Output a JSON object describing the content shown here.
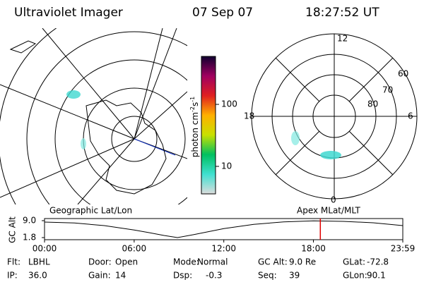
{
  "header": {
    "title": "Ultraviolet Imager",
    "date": "07 Sep 07",
    "time": "18:27:52 UT"
  },
  "colorbar": {
    "label": "photon cm",
    "exp1": "-2",
    "unit2": "s",
    "exp2": "-1",
    "log": true,
    "lim": [
      3.6,
      594
    ],
    "ticks": [
      10,
      100
    ],
    "colors": [
      "#dcdcdc",
      "#40e0d0",
      "#00c060",
      "#c8e000",
      "#ffb000",
      "#e02020",
      "#a00060",
      "#100030"
    ]
  },
  "polar": {
    "mlt_labels": [
      "12",
      "6",
      "0",
      "18"
    ],
    "lat_labels": [
      "60",
      "70",
      "80"
    ]
  },
  "timeline": {
    "left_label": "Geographic Lat/Lon",
    "right_label": "Apex MLat/MLT",
    "y_label": "GC Alt",
    "ylim": [
      1.8,
      9
    ],
    "yticks": [
      {
        "value": 9,
        "label": "9.0"
      },
      1.8
    ],
    "xlim": [
      0,
      23.98
    ],
    "xticks": [
      {
        "value": 0,
        "label": "00:00"
      },
      {
        "value": 6,
        "label": "06:00"
      },
      {
        "value": 12,
        "label": "12:00"
      },
      {
        "value": 18,
        "label": "18:00"
      },
      {
        "value": 23.98,
        "label": "23:59"
      }
    ],
    "x": [
      0,
      2,
      4,
      6,
      7,
      8,
      8.9,
      10,
      12,
      14,
      16,
      18,
      20,
      22,
      23.98
    ],
    "values": [
      8.4,
      8.0,
      6.9,
      5.0,
      3.9,
      2.7,
      1.8,
      3.1,
      5.6,
      7.4,
      8.5,
      8.9,
      8.7,
      8.1,
      6.9
    ],
    "cursor": 18.46,
    "cursor_color": "#e00000"
  },
  "footer": [
    [
      {
        "label": "Flt:",
        "value": "LBHL"
      },
      {
        "label": "Door:",
        "value": "Open"
      },
      {
        "label": "Mode:",
        "value": "Normal"
      },
      {
        "label": "GC Alt:",
        "value": "9.0 Re"
      },
      {
        "label": "GLat:",
        "value": "-72.8"
      }
    ],
    [
      {
        "label": "IP:",
        "value": "36.0"
      },
      {
        "label": "Gain:",
        "value": "14"
      },
      {
        "label": "Dsp:",
        "value": "-0.3"
      },
      {
        "label": "Seq:",
        "value": "39"
      },
      {
        "label": "GLon:",
        "value": "90.1"
      }
    ]
  ]
}
